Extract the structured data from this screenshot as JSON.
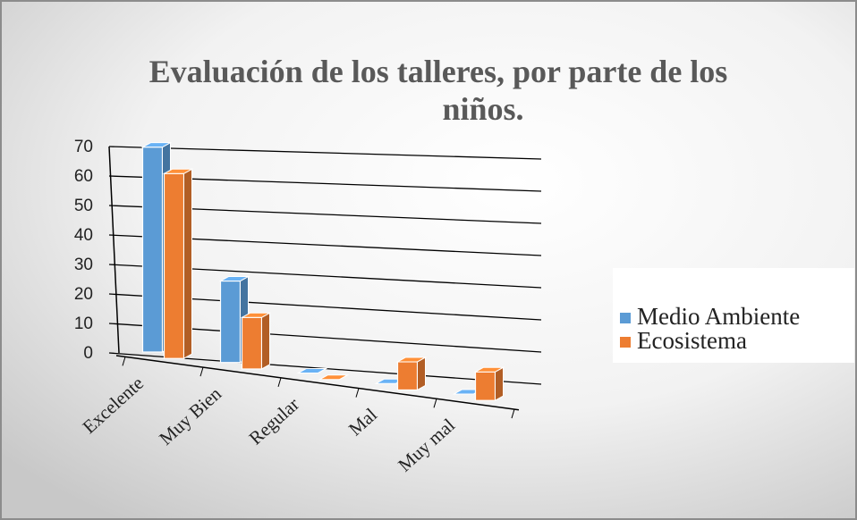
{
  "chart_data": {
    "type": "bar3d",
    "title": "Evaluación de los talleres, por parte de los niños.",
    "categories": [
      "Excelente",
      "Muy Bien",
      "Regular",
      "Mal",
      "Muy mal"
    ],
    "series": [
      {
        "name": "Medio Ambiente",
        "color": "#5b9bd5",
        "values": [
          69,
          27,
          0,
          0,
          0
        ]
      },
      {
        "name": "Ecosistema",
        "color": "#ed7d31",
        "values": [
          62,
          17,
          0,
          9,
          9
        ]
      }
    ],
    "ylim": [
      0,
      70
    ],
    "yticks": [
      0,
      10,
      20,
      30,
      40,
      50,
      60,
      70
    ],
    "grid": true,
    "legend": "right"
  }
}
